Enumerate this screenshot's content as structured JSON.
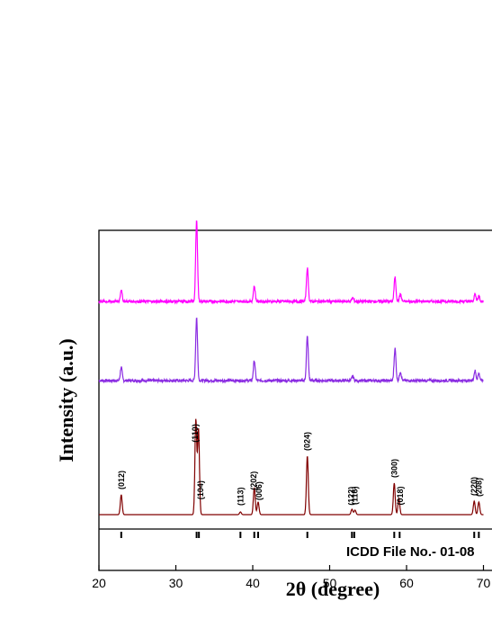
{
  "chart_data": {
    "type": "line",
    "xlabel": "2θ (degree)",
    "ylabel": "Intensity (a.u.)",
    "xlim": [
      20,
      70
    ],
    "xticks": [
      20,
      30,
      40,
      50,
      60,
      70
    ],
    "xtick_labels": [
      "20",
      "30",
      "40",
      "50",
      "60",
      "70"
    ],
    "yticks_visible": false,
    "grid": false,
    "reference_label": "ICDD File No.- 01-08",
    "reference_positions": [
      22.9,
      32.7,
      33.0,
      38.4,
      40.2,
      40.7,
      47.1,
      52.9,
      53.2,
      58.4,
      59.1,
      68.8,
      69.4
    ],
    "peak_labels": [
      {
        "hkl": "(012)",
        "two_theta": 22.9
      },
      {
        "hkl": "(110)",
        "two_theta": 32.5
      },
      {
        "hkl": "(104)",
        "two_theta": 33.2
      },
      {
        "hkl": "(113)",
        "two_theta": 38.4
      },
      {
        "hkl": "(202)",
        "two_theta": 40.1
      },
      {
        "hkl": "(006)",
        "two_theta": 40.8
      },
      {
        "hkl": "(024)",
        "two_theta": 47.1
      },
      {
        "hkl": "(122)",
        "two_theta": 52.8
      },
      {
        "hkl": "(116)",
        "two_theta": 53.3
      },
      {
        "hkl": "(300)",
        "two_theta": 58.4
      },
      {
        "hkl": "(018)",
        "two_theta": 59.2
      },
      {
        "hkl": "(220)",
        "two_theta": 68.8
      },
      {
        "hkl": "(208)",
        "two_theta": 69.4
      }
    ],
    "series": [
      {
        "color": "#800000",
        "offset": 0,
        "baseline": 6,
        "peaks": [
          {
            "x": 22.9,
            "y": 22
          },
          {
            "x": 32.6,
            "y": 105
          },
          {
            "x": 32.95,
            "y": 95
          },
          {
            "x": 38.4,
            "y": 3
          },
          {
            "x": 40.2,
            "y": 30
          },
          {
            "x": 40.7,
            "y": 14
          },
          {
            "x": 47.1,
            "y": 65
          },
          {
            "x": 52.9,
            "y": 6
          },
          {
            "x": 53.3,
            "y": 5
          },
          {
            "x": 58.4,
            "y": 35
          },
          {
            "x": 59.0,
            "y": 18
          },
          {
            "x": 68.8,
            "y": 15
          },
          {
            "x": 69.4,
            "y": 14
          }
        ]
      },
      {
        "color": "#8a2be2",
        "offset": 147,
        "baseline": 8,
        "peaks": [
          {
            "x": 22.9,
            "y": 15
          },
          {
            "x": 32.7,
            "y": 70
          },
          {
            "x": 40.2,
            "y": 22
          },
          {
            "x": 47.1,
            "y": 49
          },
          {
            "x": 53.0,
            "y": 5
          },
          {
            "x": 58.5,
            "y": 36
          },
          {
            "x": 59.2,
            "y": 10
          },
          {
            "x": 68.9,
            "y": 11
          },
          {
            "x": 69.4,
            "y": 8
          }
        ]
      },
      {
        "color": "#ff00ff",
        "offset": 235,
        "baseline": 8,
        "peaks": [
          {
            "x": 22.9,
            "y": 13
          },
          {
            "x": 32.7,
            "y": 90
          },
          {
            "x": 40.2,
            "y": 17
          },
          {
            "x": 47.1,
            "y": 37
          },
          {
            "x": 53.0,
            "y": 4
          },
          {
            "x": 58.5,
            "y": 27
          },
          {
            "x": 59.2,
            "y": 8
          },
          {
            "x": 68.9,
            "y": 8
          },
          {
            "x": 69.4,
            "y": 6
          }
        ]
      }
    ]
  }
}
